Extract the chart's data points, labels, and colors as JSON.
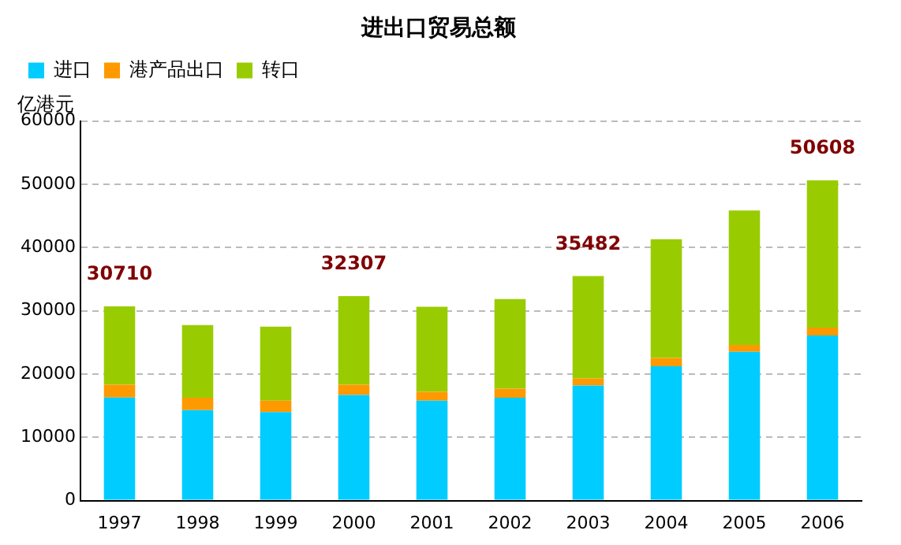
{
  "chart_data": {
    "type": "bar",
    "title": "进出口贸易总额",
    "ylabel": "亿港元",
    "categories": [
      "1997",
      "1998",
      "1999",
      "2000",
      "2001",
      "2002",
      "2003",
      "2004",
      "2005",
      "2006"
    ],
    "series": [
      {
        "name": "进口",
        "color": "#00ccff",
        "values": [
          16300,
          14300,
          14000,
          16700,
          15800,
          16250,
          18200,
          21250,
          23500,
          26100
        ]
      },
      {
        "name": "港产品出口",
        "color": "#ff9900",
        "values": [
          2000,
          1950,
          1800,
          1600,
          1400,
          1450,
          1100,
          1300,
          1100,
          1250
        ]
      },
      {
        "name": "转口",
        "color": "#99cc00",
        "values": [
          12410,
          11500,
          11700,
          14007,
          13450,
          14150,
          16182,
          18750,
          21250,
          23258
        ]
      }
    ],
    "stacked": true,
    "totals": [
      "30710",
      null,
      null,
      "32307",
      null,
      null,
      "35482",
      null,
      null,
      "50608"
    ],
    "ylim": [
      0,
      60000
    ],
    "yticks": [
      0,
      10000,
      20000,
      30000,
      40000,
      50000,
      60000
    ],
    "grid": "y",
    "legend": "top left"
  }
}
